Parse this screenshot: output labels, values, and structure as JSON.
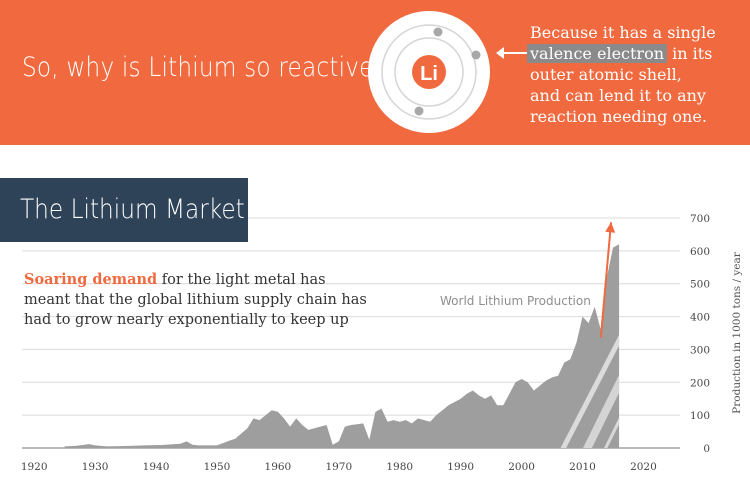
{
  "banner": {
    "question": "So, why is Lithium so reactive?",
    "answer_line1": "Because it has a single",
    "answer_highlight": "valence electron",
    "answer_line2_rest": " in its",
    "answer_line3": "outer atomic shell,",
    "answer_line4": "and can lend it to any",
    "answer_line5": "reaction needing one.",
    "element_symbol": "Li",
    "accent_color": "#f1693f"
  },
  "section": {
    "title": "The Lithium Market",
    "title_bg_color": "#2e4358",
    "desc_bold": "Soaring demand",
    "desc_line1_rest": " for the light metal has",
    "desc_line2": "meant that the global lithium supply chain has",
    "desc_line3": "had to grow nearly exponentially to keep up"
  },
  "chart_data": {
    "type": "area",
    "series_label": "World Lithium Production",
    "ylabel": "Production in 1000 tons / year",
    "xlim": [
      1918,
      2026
    ],
    "ylim": [
      0,
      700
    ],
    "x_ticks": [
      1920,
      1930,
      1940,
      1950,
      1960,
      1970,
      1980,
      1990,
      2000,
      2010,
      2020
    ],
    "y_ticks": [
      0,
      100,
      200,
      300,
      400,
      500,
      600,
      700
    ],
    "grid": true,
    "fill_color": "#9e9e9e",
    "arrow_color": "#f1693f",
    "x": [
      1925,
      1927,
      1929,
      1930,
      1932,
      1935,
      1938,
      1941,
      1944,
      1945,
      1946,
      1947,
      1950,
      1952,
      1953,
      1955,
      1956,
      1957,
      1958,
      1959,
      1960,
      1961,
      1962,
      1963,
      1964,
      1965,
      1966,
      1967,
      1968,
      1969,
      1970,
      1971,
      1972,
      1973,
      1974,
      1975,
      1976,
      1977,
      1978,
      1979,
      1980,
      1981,
      1982,
      1983,
      1984,
      1985,
      1986,
      1987,
      1988,
      1989,
      1990,
      1991,
      1992,
      1993,
      1994,
      1995,
      1996,
      1997,
      1998,
      1999,
      2000,
      2001,
      2002,
      2003,
      2004,
      2005,
      2006,
      2007,
      2008,
      2009,
      2010,
      2011,
      2012,
      2013,
      2014,
      2015,
      2016
    ],
    "values": [
      5,
      7,
      12,
      8,
      5,
      6,
      8,
      9,
      13,
      20,
      10,
      8,
      8,
      22,
      28,
      60,
      90,
      85,
      100,
      115,
      110,
      90,
      65,
      90,
      70,
      55,
      60,
      65,
      70,
      10,
      20,
      65,
      70,
      72,
      75,
      25,
      110,
      120,
      80,
      85,
      80,
      85,
      75,
      90,
      85,
      80,
      100,
      115,
      130,
      140,
      150,
      165,
      175,
      160,
      150,
      160,
      130,
      130,
      165,
      200,
      210,
      200,
      175,
      190,
      205,
      215,
      220,
      260,
      270,
      320,
      400,
      380,
      430,
      360,
      520,
      610,
      620
    ]
  }
}
